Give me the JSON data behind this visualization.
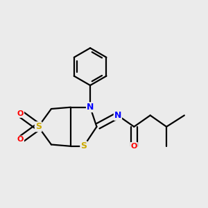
{
  "bg_color": "#ebebeb",
  "atom_colors": {
    "S": "#ccaa00",
    "N": "#0000ff",
    "O": "#ff0000",
    "C": "#000000"
  },
  "bond_color": "#000000",
  "figsize": [
    3.0,
    3.0
  ],
  "dpi": 100,
  "lw": 1.6
}
